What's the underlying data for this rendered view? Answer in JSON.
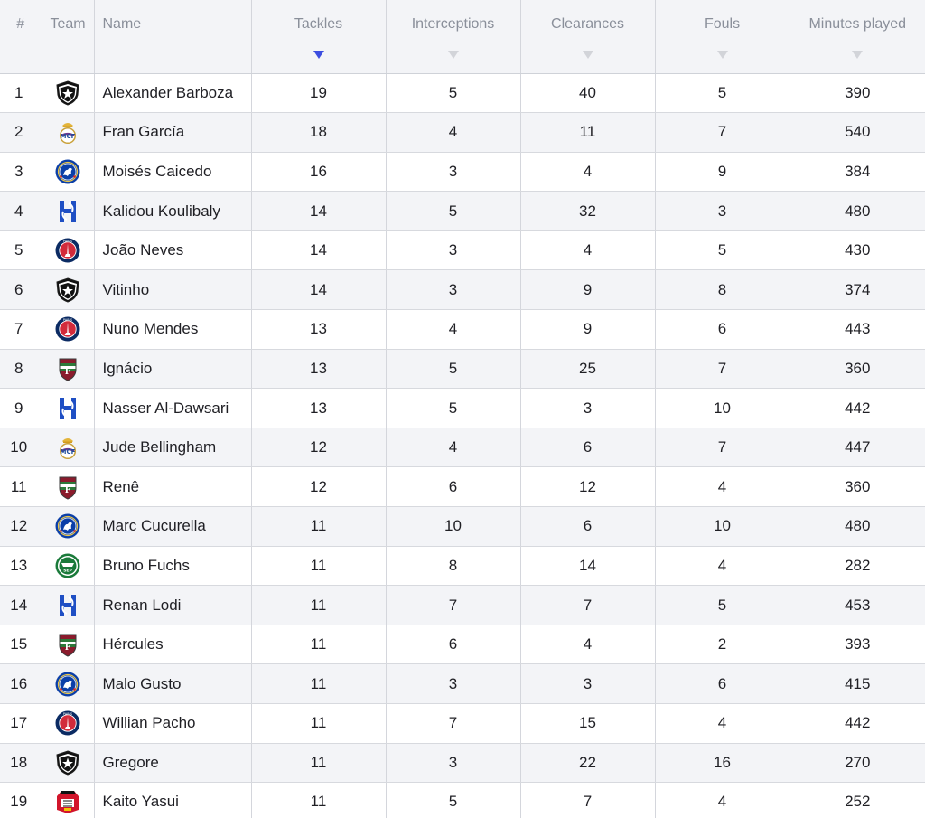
{
  "table": {
    "headers": {
      "rank": "#",
      "team": "Team",
      "name": "Name",
      "tackles": "Tackles",
      "interceptions": "Interceptions",
      "clearances": "Clearances",
      "fouls": "Fouls",
      "minutes": "Minutes played"
    },
    "sorted_by": "tackles",
    "sort_direction": "descending",
    "colors": {
      "sort_active": "#3c4ee0",
      "sort_inactive": "#d2d4d9",
      "header_bg": "#f3f4f7",
      "stripe_bg": "#f3f4f7"
    },
    "rows": [
      {
        "rank": "1",
        "team_icon": "botafogo-crest-icon",
        "name": "Alexander Barboza",
        "tackles": "19",
        "interceptions": "5",
        "clearances": "40",
        "fouls": "5",
        "minutes": "390"
      },
      {
        "rank": "2",
        "team_icon": "real-madrid-crest-icon",
        "name": "Fran García",
        "tackles": "18",
        "interceptions": "4",
        "clearances": "11",
        "fouls": "7",
        "minutes": "540"
      },
      {
        "rank": "3",
        "team_icon": "chelsea-crest-icon",
        "name": "Moisés Caicedo",
        "tackles": "16",
        "interceptions": "3",
        "clearances": "4",
        "fouls": "9",
        "minutes": "384"
      },
      {
        "rank": "4",
        "team_icon": "al-hilal-crest-icon",
        "name": "Kalidou Koulibaly",
        "tackles": "14",
        "interceptions": "5",
        "clearances": "32",
        "fouls": "3",
        "minutes": "480"
      },
      {
        "rank": "5",
        "team_icon": "psg-crest-icon",
        "name": "João Neves",
        "tackles": "14",
        "interceptions": "3",
        "clearances": "4",
        "fouls": "5",
        "minutes": "430"
      },
      {
        "rank": "6",
        "team_icon": "botafogo-crest-icon",
        "name": "Vitinho",
        "tackles": "14",
        "interceptions": "3",
        "clearances": "9",
        "fouls": "8",
        "minutes": "374"
      },
      {
        "rank": "7",
        "team_icon": "psg-crest-icon",
        "name": "Nuno Mendes",
        "tackles": "13",
        "interceptions": "4",
        "clearances": "9",
        "fouls": "6",
        "minutes": "443"
      },
      {
        "rank": "8",
        "team_icon": "fluminense-crest-icon",
        "name": "Ignácio",
        "tackles": "13",
        "interceptions": "5",
        "clearances": "25",
        "fouls": "7",
        "minutes": "360"
      },
      {
        "rank": "9",
        "team_icon": "al-hilal-crest-icon",
        "name": "Nasser Al-Dawsari",
        "tackles": "13",
        "interceptions": "5",
        "clearances": "3",
        "fouls": "10",
        "minutes": "442"
      },
      {
        "rank": "10",
        "team_icon": "real-madrid-crest-icon",
        "name": "Jude Bellingham",
        "tackles": "12",
        "interceptions": "4",
        "clearances": "6",
        "fouls": "7",
        "minutes": "447"
      },
      {
        "rank": "11",
        "team_icon": "fluminense-crest-icon",
        "name": "Renê",
        "tackles": "12",
        "interceptions": "6",
        "clearances": "12",
        "fouls": "4",
        "minutes": "360"
      },
      {
        "rank": "12",
        "team_icon": "chelsea-crest-icon",
        "name": "Marc Cucurella",
        "tackles": "11",
        "interceptions": "10",
        "clearances": "6",
        "fouls": "10",
        "minutes": "480"
      },
      {
        "rank": "13",
        "team_icon": "palmeiras-crest-icon",
        "name": "Bruno Fuchs",
        "tackles": "11",
        "interceptions": "8",
        "clearances": "14",
        "fouls": "4",
        "minutes": "282"
      },
      {
        "rank": "14",
        "team_icon": "al-hilal-crest-icon",
        "name": "Renan Lodi",
        "tackles": "11",
        "interceptions": "7",
        "clearances": "7",
        "fouls": "5",
        "minutes": "453"
      },
      {
        "rank": "15",
        "team_icon": "fluminense-crest-icon",
        "name": "Hércules",
        "tackles": "11",
        "interceptions": "6",
        "clearances": "4",
        "fouls": "2",
        "minutes": "393"
      },
      {
        "rank": "16",
        "team_icon": "chelsea-crest-icon",
        "name": "Malo Gusto",
        "tackles": "11",
        "interceptions": "3",
        "clearances": "3",
        "fouls": "6",
        "minutes": "415"
      },
      {
        "rank": "17",
        "team_icon": "psg-crest-icon",
        "name": "Willian Pacho",
        "tackles": "11",
        "interceptions": "7",
        "clearances": "15",
        "fouls": "4",
        "minutes": "442"
      },
      {
        "rank": "18",
        "team_icon": "botafogo-crest-icon",
        "name": "Gregore",
        "tackles": "11",
        "interceptions": "3",
        "clearances": "22",
        "fouls": "16",
        "minutes": "270"
      },
      {
        "rank": "19",
        "team_icon": "urawa-reds-crest-icon",
        "name": "Kaito Yasui",
        "tackles": "11",
        "interceptions": "5",
        "clearances": "7",
        "fouls": "4",
        "minutes": "252"
      }
    ]
  }
}
